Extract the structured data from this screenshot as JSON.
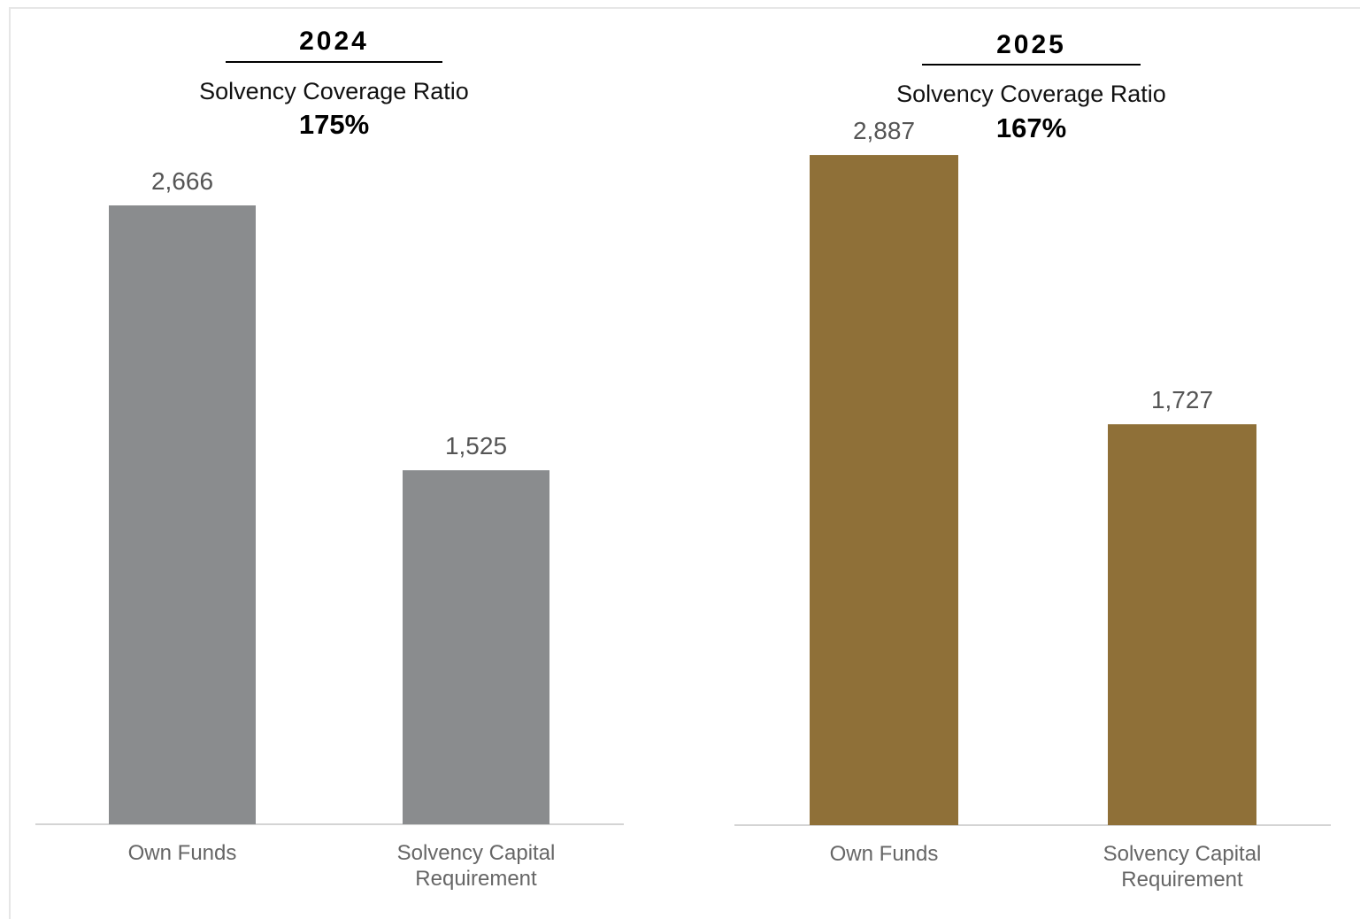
{
  "chart_data": [
    {
      "type": "bar",
      "year": "2024",
      "subtitle": "Solvency Coverage Ratio",
      "ratio": "175%",
      "categories": [
        "Own Funds",
        "Solvency Capital\nRequirement"
      ],
      "values": [
        2666,
        1525
      ],
      "value_labels": [
        "2,666",
        "1,525"
      ],
      "bar_color": "#8a8c8e",
      "ylim": [
        0,
        3500
      ]
    },
    {
      "type": "bar",
      "year": "2025",
      "subtitle": "Solvency Coverage Ratio",
      "ratio": "167%",
      "categories": [
        "Own Funds",
        "Solvency Capital\nRequirement"
      ],
      "values": [
        2887,
        1727
      ],
      "value_labels": [
        "2,887",
        "1,727"
      ],
      "bar_color": "#8f7038",
      "ylim": [
        0,
        3500
      ]
    }
  ]
}
